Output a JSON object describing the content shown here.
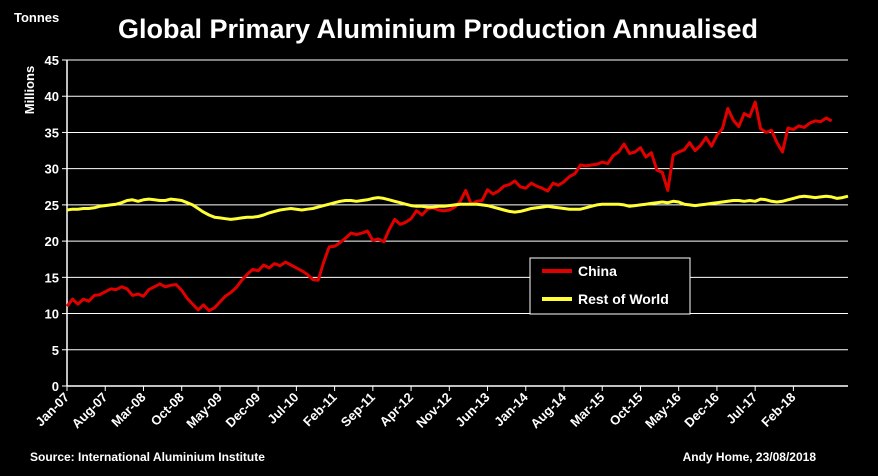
{
  "chart_data": {
    "type": "line",
    "title": "Global Primary Aluminium Production Annualised",
    "unit_label": "Tonnes",
    "ylabel": "Millions",
    "ylim": [
      0,
      45
    ],
    "yticks": [
      0,
      5,
      10,
      15,
      20,
      25,
      30,
      35,
      40,
      45
    ],
    "x_start": "Jan-07",
    "x_end": "Jul-18",
    "x_tick_labels": [
      "Jan-07",
      "Aug-07",
      "Mar-08",
      "Oct-08",
      "May-09",
      "Dec-09",
      "Jul-10",
      "Feb-11",
      "Sep-11",
      "Apr-12",
      "Nov-12",
      "Jun-13",
      "Jan-14",
      "Aug-14",
      "Mar-15",
      "Oct-15",
      "May-16",
      "Dec-16",
      "Jul-17",
      "Feb-18"
    ],
    "grid": true,
    "legend_position": "lower-right",
    "colors": {
      "China": "#e00000",
      "Rest of World": "#ffff33"
    },
    "series": [
      {
        "name": "China",
        "values": [
          11.0,
          12.0,
          11.3,
          12.0,
          11.7,
          12.5,
          12.6,
          13.0,
          13.4,
          13.3,
          13.7,
          13.4,
          12.5,
          12.7,
          12.4,
          13.3,
          13.7,
          14.1,
          13.7,
          13.9,
          14.0,
          13.2,
          12.1,
          11.3,
          10.5,
          11.2,
          10.4,
          10.8,
          11.6,
          12.4,
          12.9,
          13.6,
          14.6,
          15.4,
          16.1,
          15.9,
          16.7,
          16.3,
          16.9,
          16.6,
          17.1,
          16.7,
          16.3,
          15.9,
          15.4,
          14.7,
          14.6,
          17.1,
          19.2,
          19.3,
          19.8,
          20.4,
          21.1,
          20.9,
          21.1,
          21.4,
          20.1,
          20.3,
          19.9,
          21.6,
          23.0,
          22.3,
          22.6,
          23.1,
          24.2,
          23.6,
          24.4,
          24.6,
          24.3,
          24.2,
          24.3,
          24.7,
          25.5,
          27.0,
          25.1,
          25.5,
          25.6,
          27.1,
          26.5,
          26.9,
          27.6,
          27.8,
          28.3,
          27.5,
          27.3,
          28.0,
          27.6,
          27.3,
          26.9,
          28.0,
          27.7,
          28.2,
          28.9,
          29.3,
          30.5,
          30.4,
          30.5,
          30.6,
          30.9,
          30.7,
          31.8,
          32.3,
          33.4,
          32.1,
          32.3,
          32.9,
          31.6,
          32.2,
          29.8,
          29.5,
          27.0,
          31.9,
          32.3,
          32.6,
          33.6,
          32.5,
          33.2,
          34.3,
          33.1,
          34.6,
          35.5,
          38.3,
          36.7,
          35.8,
          37.6,
          37.2,
          39.2,
          35.5,
          35.0,
          35.3,
          33.6,
          32.3,
          35.6,
          35.4,
          35.9,
          35.7,
          36.3,
          36.6,
          36.5,
          37.0,
          36.6
        ],
        "end_label": "China"
      },
      {
        "name": "Rest of World",
        "values": [
          24.3,
          24.4,
          24.4,
          24.5,
          24.5,
          24.6,
          24.8,
          24.9,
          25.0,
          25.1,
          25.3,
          25.6,
          25.7,
          25.5,
          25.7,
          25.8,
          25.7,
          25.6,
          25.6,
          25.8,
          25.7,
          25.6,
          25.3,
          25.0,
          24.5,
          24.0,
          23.6,
          23.3,
          23.2,
          23.1,
          23.0,
          23.1,
          23.2,
          23.3,
          23.3,
          23.4,
          23.6,
          23.9,
          24.1,
          24.3,
          24.4,
          24.5,
          24.4,
          24.3,
          24.4,
          24.5,
          24.7,
          24.9,
          25.1,
          25.3,
          25.5,
          25.6,
          25.6,
          25.5,
          25.6,
          25.7,
          25.9,
          26.0,
          25.9,
          25.7,
          25.5,
          25.3,
          25.1,
          24.9,
          24.8,
          24.8,
          24.7,
          24.7,
          24.8,
          24.8,
          24.9,
          25.0,
          25.1,
          25.1,
          25.1,
          25.1,
          25.0,
          24.9,
          24.7,
          24.5,
          24.3,
          24.1,
          24.0,
          24.1,
          24.3,
          24.5,
          24.6,
          24.7,
          24.8,
          24.7,
          24.6,
          24.5,
          24.4,
          24.4,
          24.4,
          24.6,
          24.8,
          25.0,
          25.1,
          25.1,
          25.1,
          25.1,
          25.0,
          24.8,
          24.9,
          25.0,
          25.1,
          25.2,
          25.3,
          25.4,
          25.3,
          25.5,
          25.4,
          25.1,
          25.0,
          24.9,
          25.0,
          25.1,
          25.2,
          25.3,
          25.4,
          25.5,
          25.6,
          25.6,
          25.5,
          25.6,
          25.5,
          25.8,
          25.7,
          25.5,
          25.4,
          25.5,
          25.7,
          25.9,
          26.1,
          26.2,
          26.1,
          26.0,
          26.1,
          26.2,
          26.1,
          25.9,
          26.0,
          26.2
        ],
        "end_label": "Rest of World"
      }
    ],
    "source": "Source: International Aluminium Institute",
    "credit": "Andy Home, 23/08/2018"
  }
}
